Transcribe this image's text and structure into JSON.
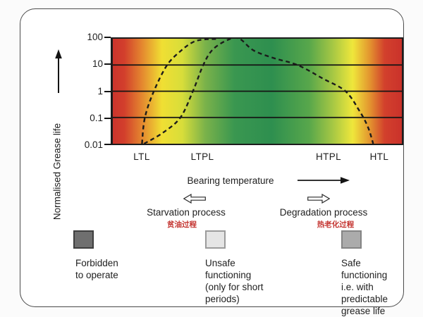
{
  "figure": {
    "y_axis": {
      "label": "Normalised Grease life",
      "ticks": [
        "100",
        "10",
        "1",
        "0.1",
        "0.01"
      ]
    },
    "x_axis": {
      "label": "Bearing temperature",
      "ticks": [
        "LTL",
        "LTPL",
        "HTPL",
        "HTL"
      ]
    },
    "processes": {
      "left": {
        "label": "Starvation process",
        "label_cn": "贫油过程",
        "cn_color": "#c43430"
      },
      "right": {
        "label": "Degradation process",
        "label_cn": "热老化过程",
        "cn_color": "#c43430"
      }
    },
    "legend": [
      {
        "label": "Forbidden\nto operate",
        "swatch_color": "#6f6f6f",
        "swatch_style": "background:#6f6f6f;border:2px solid #3e3e3e"
      },
      {
        "label": "Unsafe\nfunctioning\n(only for short\nperiods)",
        "swatch_color": "#e5e5e5",
        "swatch_style": "background:#e5e5e5;border:2px solid #9b9b9b"
      },
      {
        "label": "Safe\nfunctioning\ni.e. with\npredictable\ngrease life",
        "swatch_color": "#ababab",
        "swatch_style": "background:#ababab;border:2px solid #848484"
      }
    ]
  },
  "chart_data": {
    "type": "line",
    "xlabel": "Bearing temperature",
    "ylabel": "Normalised Grease life",
    "y_scale": "log",
    "ylim": [
      0.01,
      100
    ],
    "yticks": [
      100,
      10,
      1,
      0.1,
      0.01
    ],
    "gridlines_at": [
      10,
      1,
      0.1
    ],
    "x_axis_qualitative": true,
    "xticks": [
      "LTL",
      "LTPL",
      "HTPL",
      "HTL"
    ],
    "xtick_positions_pct": [
      10.5,
      31.2,
      74.5,
      91.5
    ],
    "series": [
      {
        "name": "low-temperature steep life rise (dashed)",
        "style": "dashed",
        "points_pct_life": [
          [
            10.1,
            0.01
          ],
          [
            11.1,
            0.1
          ],
          [
            14.2,
            1
          ],
          [
            18.8,
            10
          ],
          [
            23.6,
            35
          ],
          [
            27.7,
            74
          ],
          [
            31.3,
            93
          ],
          [
            36.6,
            99
          ]
        ]
      },
      {
        "name": "grease life bell curve (dashed)",
        "style": "dashed",
        "points_pct_life": [
          [
            10.8,
            0.01
          ],
          [
            17.3,
            0.026
          ],
          [
            23.4,
            0.1
          ],
          [
            27.7,
            1
          ],
          [
            31.3,
            10
          ],
          [
            34.7,
            40
          ],
          [
            40.2,
            95
          ],
          [
            43.9,
            99
          ],
          [
            48.7,
            36
          ],
          [
            55.9,
            18
          ],
          [
            63.9,
            10
          ],
          [
            72.8,
            3
          ],
          [
            80.5,
            1
          ],
          [
            85.3,
            0.18
          ],
          [
            88.2,
            0.045
          ],
          [
            90.1,
            0.01
          ]
        ]
      }
    ],
    "background_gradient": [
      {
        "pos": 0,
        "color": "#cc342c"
      },
      {
        "pos": 4,
        "color": "#d23f2c"
      },
      {
        "pos": 10,
        "color": "#e4862f"
      },
      {
        "pos": 17,
        "color": "#f0df33"
      },
      {
        "pos": 24,
        "color": "#d8dd3a"
      },
      {
        "pos": 32,
        "color": "#7ab24a"
      },
      {
        "pos": 42,
        "color": "#3a9750"
      },
      {
        "pos": 55,
        "color": "#2e8f4f"
      },
      {
        "pos": 68,
        "color": "#58a74b"
      },
      {
        "pos": 76,
        "color": "#a5c744"
      },
      {
        "pos": 83,
        "color": "#efe73b"
      },
      {
        "pos": 89,
        "color": "#e3932f"
      },
      {
        "pos": 94,
        "color": "#d2402c"
      },
      {
        "pos": 100,
        "color": "#ca322b"
      }
    ],
    "legend_position": "bottom"
  }
}
